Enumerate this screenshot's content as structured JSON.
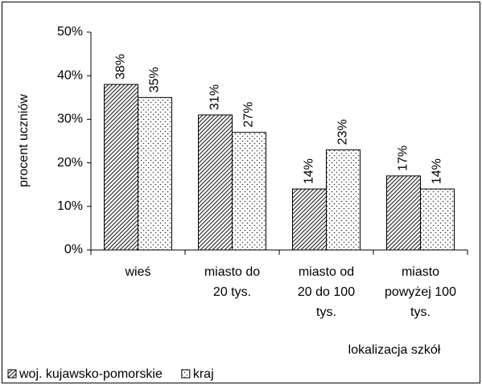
{
  "chart_data": {
    "type": "bar",
    "y_label": "procent uczniów",
    "x_label": "lokalizacja szkół",
    "categories": [
      [
        "wieś"
      ],
      [
        "miasto do",
        "20 tys."
      ],
      [
        "miasto od",
        "20 do 100",
        "tys."
      ],
      [
        "miasto",
        "powyżej 100",
        "tys."
      ]
    ],
    "series": [
      {
        "name": "woj. kujawsko-pomorskie",
        "color": "#000000",
        "pattern": "hatch",
        "values": [
          38,
          31,
          14,
          17
        ],
        "value_labels": [
          "38%",
          "31%",
          "14%",
          "17%"
        ]
      },
      {
        "name": "kraj",
        "color": "#000000",
        "pattern": "dots",
        "values": [
          35,
          27,
          23,
          14
        ],
        "value_labels": [
          "35%",
          "27%",
          "23%",
          "14%"
        ]
      }
    ],
    "ylim": [
      0,
      50
    ],
    "yticks": [
      {
        "value": 0,
        "label": "0%"
      },
      {
        "value": 10,
        "label": "10%"
      },
      {
        "value": 20,
        "label": "20%"
      },
      {
        "value": 30,
        "label": "30%"
      },
      {
        "value": 40,
        "label": "40%"
      },
      {
        "value": 50,
        "label": "50%"
      }
    ],
    "grid": false,
    "legend": "bottom-left"
  }
}
